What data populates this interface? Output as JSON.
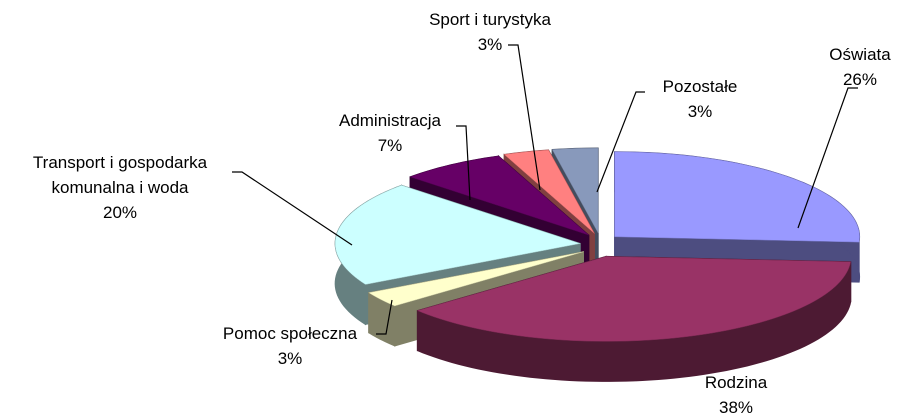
{
  "chart_data": {
    "type": "pie",
    "categories": [
      "Oświata",
      "Rodzina",
      "Pomoc społeczna",
      "Transport i gospodarka komunalna i woda",
      "Administracja",
      "Sport i turystyka",
      "Pozostałe"
    ],
    "values": [
      26,
      38,
      3,
      20,
      7,
      3,
      3
    ],
    "value_labels": [
      "26%",
      "38%",
      "3%",
      "20%",
      "7%",
      "3%",
      "3%"
    ],
    "colors": [
      "#9999ff",
      "#993366",
      "#ffffcc",
      "#ccffff",
      "#660066",
      "#ff8080",
      "#8899bb"
    ]
  }
}
